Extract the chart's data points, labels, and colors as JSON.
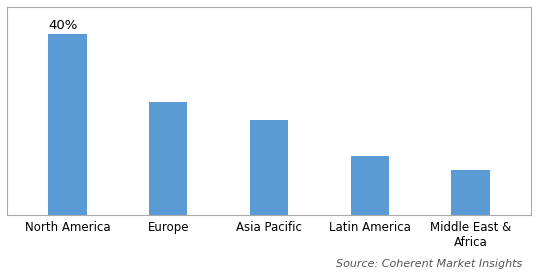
{
  "categories": [
    "North America",
    "Europe",
    "Asia Pacific",
    "Latin America",
    "Middle East &\nAfrica"
  ],
  "values": [
    40,
    25,
    21,
    13,
    10
  ],
  "bar_color": "#5b9bd5",
  "annotation": "40%",
  "annotation_bar_index": 0,
  "source_text": "Source: Coherent Market Insights",
  "background_color": "#ffffff",
  "ylim": [
    0,
    46
  ],
  "bar_width": 0.38,
  "tick_fontsize": 8.5,
  "source_fontsize": 8,
  "annotation_fontsize": 9.5,
  "spine_color": "#aaaaaa",
  "figsize": [
    5.38,
    2.72
  ],
  "dpi": 100
}
